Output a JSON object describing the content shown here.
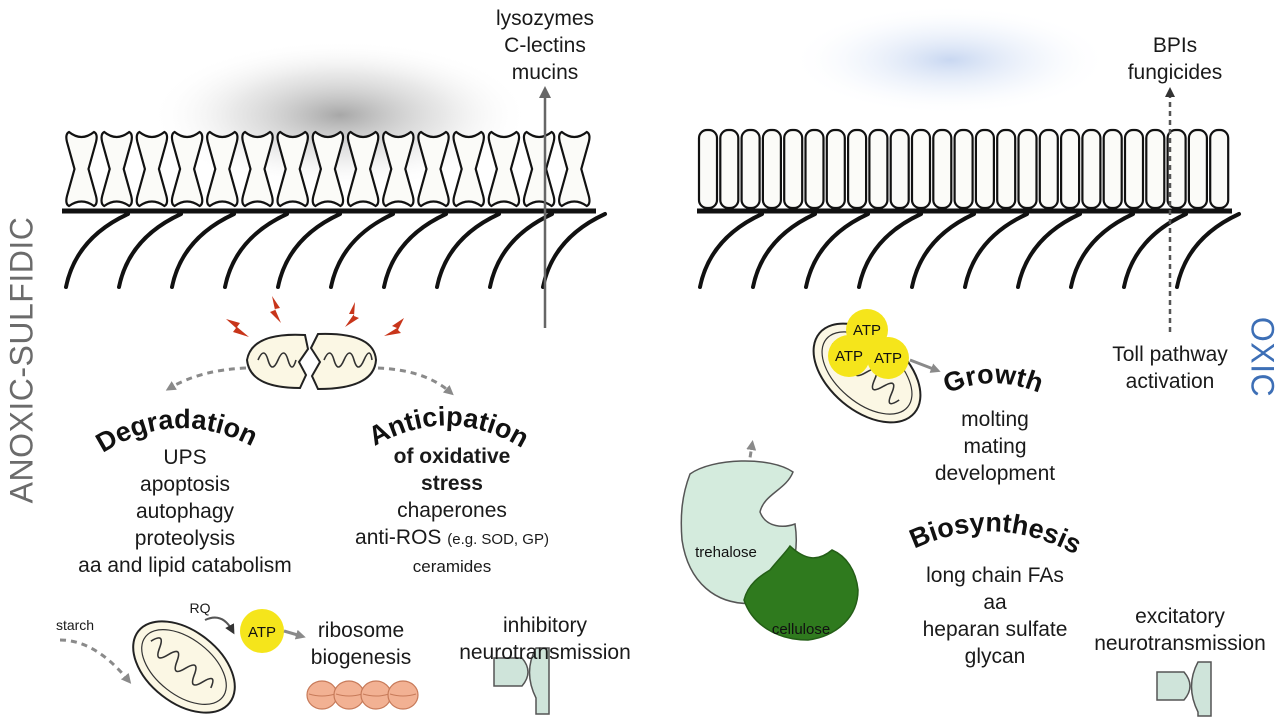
{
  "colors": {
    "anoxic_label": "#6b6b6b",
    "oxic_label": "#3d6fb6",
    "atp_fill": "#f5e51b",
    "lightning": "#c8351a",
    "ribosome": "#f2b193",
    "synapse": "#cfe4da",
    "trehalose": "#d4ebdd",
    "cellulose": "#2f7a1e",
    "mitochondrion": "#fbf7e4",
    "dashed_arrow": "#888888"
  },
  "side_labels": {
    "left": "ANOXIC-SULFIDIC",
    "right": "OXIC"
  },
  "anoxic": {
    "secreted": [
      "lysozymes",
      "C-lectins",
      "mucins"
    ],
    "degradation": {
      "title": "Degradation",
      "items": [
        "UPS",
        "apoptosis",
        "autophagy",
        "proteolysis",
        "aa and lipid catabolism"
      ]
    },
    "anticipation": {
      "title": "Anticipation",
      "subtitle_lines": [
        "of oxidative",
        "stress"
      ],
      "items": [
        "chaperones",
        "anti-ROS",
        "(e.g. SOD, GP)",
        "ceramides"
      ]
    },
    "energy": {
      "starch": "starch",
      "rq": "RQ",
      "atp": "ATP",
      "ribosome_lines": [
        "ribosome",
        "biogenesis"
      ]
    },
    "neuro_lines": [
      "inhibitory",
      "neurotransmission"
    ]
  },
  "oxic": {
    "secreted": [
      "BPIs",
      "fungicides"
    ],
    "toll_lines": [
      "Toll pathway",
      "activation"
    ],
    "atp_labels": [
      "ATP",
      "ATP",
      "ATP"
    ],
    "growth": {
      "title": "Growth",
      "items": [
        "molting",
        "mating",
        "development"
      ]
    },
    "biosynthesis": {
      "title": "Biosynthesis",
      "items": [
        "long chain FAs",
        "aa",
        "heparan sulfate",
        "glycan"
      ]
    },
    "trehalose": "trehalose",
    "cellulose": "cellulose",
    "neuro_lines": [
      "excitatory",
      "neurotransmission"
    ]
  }
}
